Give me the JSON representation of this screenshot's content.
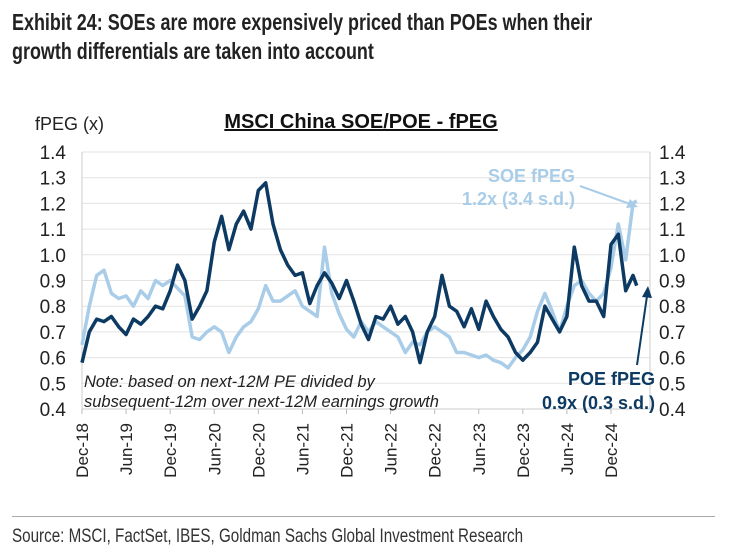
{
  "header": {
    "title_line1": "Exhibit 24: SOEs are more expensively priced than POEs when their",
    "title_line2": "growth differentials are taken into account"
  },
  "footer": {
    "source": "Source: MSCI, FactSet, IBES, Goldman Sachs Global Investment Research"
  },
  "chart_data": {
    "type": "line",
    "title": "MSCI China SOE/POE - fPEG",
    "ylabel": "fPEG (x)",
    "xlabel": "",
    "ylim": [
      0.4,
      1.4
    ],
    "yticks": [
      "1.4",
      "1.3",
      "1.2",
      "1.1",
      "1.0",
      "0.9",
      "0.8",
      "0.7",
      "0.6",
      "0.5",
      "0.4"
    ],
    "ytick_values": [
      1.4,
      1.3,
      1.2,
      1.1,
      1.0,
      0.9,
      0.8,
      0.7,
      0.6,
      0.5,
      0.4
    ],
    "xticks": [
      "Dec-18",
      "Jun-19",
      "Dec-19",
      "Jun-20",
      "Dec-20",
      "Jun-21",
      "Dec-21",
      "Jun-22",
      "Dec-22",
      "Jun-23",
      "Dec-23",
      "Jun-24",
      "Dec-24"
    ],
    "x_unit": "months since Dec-18",
    "x_range": [
      0,
      74
    ],
    "grid": true,
    "series": [
      {
        "name": "SOE fPEG",
        "color": "#a9cde8",
        "values": [
          0.65,
          0.8,
          0.92,
          0.94,
          0.85,
          0.83,
          0.84,
          0.8,
          0.86,
          0.83,
          0.9,
          0.88,
          0.9,
          0.87,
          0.84,
          0.68,
          0.67,
          0.7,
          0.72,
          0.7,
          0.62,
          0.68,
          0.72,
          0.74,
          0.79,
          0.88,
          0.82,
          0.82,
          0.84,
          0.86,
          0.8,
          0.78,
          0.76,
          1.03,
          0.85,
          0.77,
          0.71,
          0.68,
          0.74,
          0.7,
          0.74,
          0.72,
          0.7,
          0.68,
          0.62,
          0.66,
          0.65,
          0.7,
          0.72,
          0.7,
          0.68,
          0.62,
          0.62,
          0.61,
          0.6,
          0.61,
          0.59,
          0.58,
          0.56,
          0.6,
          0.63,
          0.68,
          0.78,
          0.85,
          0.78,
          0.7,
          0.8,
          0.88,
          0.9,
          0.85,
          0.82,
          0.85,
          0.95,
          1.12,
          0.98,
          1.2,
          1.21
        ]
      },
      {
        "name": "POE fPEG",
        "color": "#0d3a62",
        "values": [
          0.58,
          0.7,
          0.75,
          0.74,
          0.76,
          0.72,
          0.69,
          0.75,
          0.73,
          0.76,
          0.8,
          0.79,
          0.86,
          0.96,
          0.9,
          0.75,
          0.8,
          0.86,
          1.05,
          1.15,
          1.02,
          1.12,
          1.17,
          1.1,
          1.25,
          1.28,
          1.12,
          1.02,
          0.96,
          0.92,
          0.93,
          0.81,
          0.88,
          0.93,
          0.89,
          0.83,
          0.9,
          0.82,
          0.73,
          0.67,
          0.76,
          0.75,
          0.8,
          0.73,
          0.76,
          0.7,
          0.58,
          0.7,
          0.76,
          0.92,
          0.8,
          0.78,
          0.72,
          0.79,
          0.71,
          0.82,
          0.76,
          0.71,
          0.68,
          0.62,
          0.59,
          0.62,
          0.66,
          0.8,
          0.75,
          0.7,
          0.76,
          1.03,
          0.88,
          0.82,
          0.82,
          0.76,
          1.04,
          1.08,
          0.86,
          0.92,
          0.88
        ]
      }
    ],
    "annotations": {
      "soe_label": "SOE fPEG",
      "soe_value": "1.2x (3.4 s.d.)",
      "poe_label": "POE fPEG",
      "poe_value": "0.9x (0.3 s.d.)",
      "note_line1": "Note: based on next-12M PE divided by",
      "note_line2": "subsequent-12m over next-12M earnings growth"
    }
  }
}
